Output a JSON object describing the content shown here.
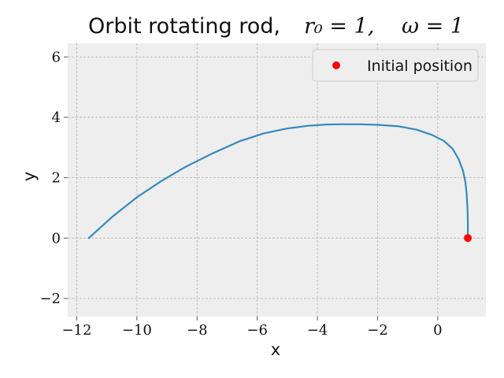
{
  "chart_data": {
    "type": "line",
    "title": "Orbit rotating rod,",
    "title_params": [
      "r₀ = 1,",
      "ω = 1"
    ],
    "xlabel": "x",
    "ylabel": "y",
    "xlim": [
      -12.3,
      1.6
    ],
    "ylim": [
      -2.6,
      6.45
    ],
    "xticks": [
      -12,
      -10,
      -8,
      -6,
      -4,
      -2,
      0
    ],
    "yticks": [
      -2,
      0,
      2,
      4,
      6
    ],
    "grid": true,
    "legend_position": "top-right",
    "series": [
      {
        "name": "",
        "kind": "line",
        "color": "#348abd",
        "x": [
          1.0,
          1.0,
          0.99,
          0.96,
          0.92,
          0.85,
          0.7,
          0.5,
          0.2,
          -0.2,
          -0.7,
          -1.3,
          -2.0,
          -2.6,
          -3.2,
          -3.7,
          -4.3,
          -5.0,
          -5.8,
          -6.6,
          -7.5,
          -8.4,
          -9.2,
          -10.0,
          -10.8,
          -11.6
        ],
        "y": [
          0.0,
          0.5,
          0.95,
          1.45,
          1.85,
          2.2,
          2.6,
          2.95,
          3.22,
          3.42,
          3.59,
          3.7,
          3.75,
          3.77,
          3.77,
          3.76,
          3.72,
          3.63,
          3.46,
          3.2,
          2.8,
          2.35,
          1.88,
          1.35,
          0.72,
          0.0
        ]
      },
      {
        "name": "Initial position",
        "kind": "point",
        "color": "#ff0000",
        "x": [
          1.0
        ],
        "y": [
          0.0
        ]
      }
    ]
  }
}
